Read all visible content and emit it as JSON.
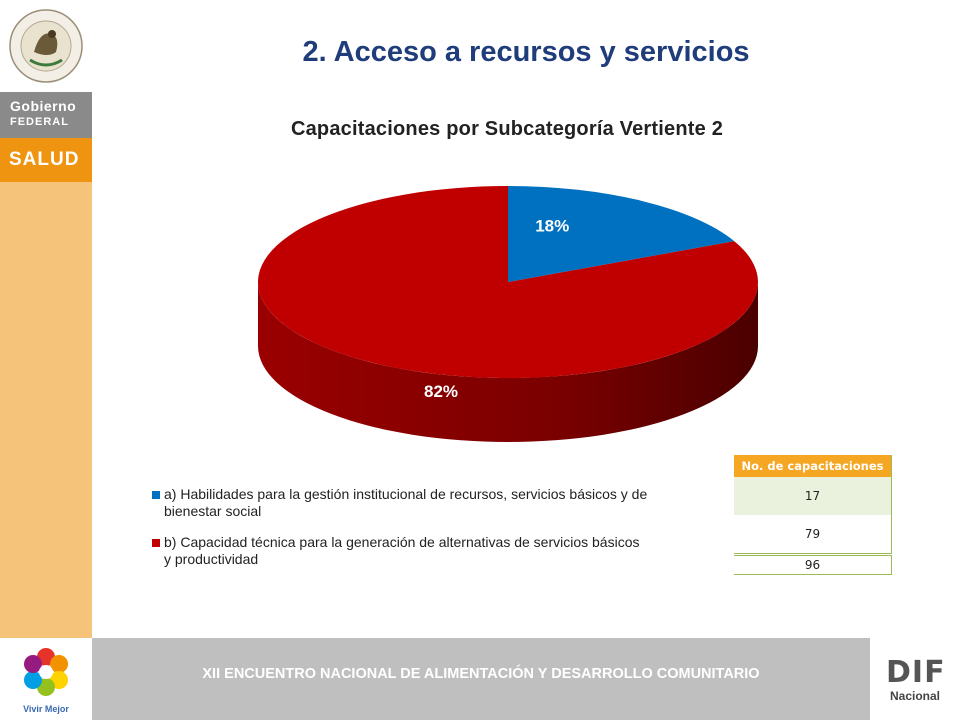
{
  "slide_title": "2. Acceso a recursos y servicios",
  "sidebar": {
    "seal_text": "ESTADOS UNIDOS MEXICANOS",
    "gobierno_line1": "Gobierno",
    "gobierno_line2": "FEDERAL",
    "salud": "SALUD"
  },
  "chart_data": {
    "type": "pie",
    "title": "Capacitaciones por Subcategoría Vertiente 2",
    "slices": [
      {
        "label": "a) Habilidades para la gestión institucional de recursos, servicios básicos y de bienestar social",
        "value": 18,
        "display": "18%",
        "color": "#0070c0"
      },
      {
        "label": "b) Capacidad técnica para la generación de alternativas de servicios básicos y productividad",
        "value": 82,
        "display": "82%",
        "color": "#c00000"
      }
    ],
    "legend_position": "bottom"
  },
  "legend": {
    "item_a_line1": "a) Habilidades para la gestión institucional de recursos, servicios básicos y de",
    "item_a_line2": "bienestar social",
    "item_b_line1": "b) Capacidad técnica para la generación de alternativas de servicios básicos",
    "item_b_line2": "y productividad"
  },
  "table": {
    "header": "No. de capacitaciones",
    "rows": [
      "17",
      "79"
    ],
    "total": "96"
  },
  "footer": {
    "text": "XII ENCUENTRO NACIONAL DE ALIMENTACIÓN Y DESARROLLO COMUNITARIO",
    "left_logo_text": "Vivir Mejor",
    "right_logo_text": "DIF",
    "right_logo_sub": "Nacional"
  },
  "colors": {
    "slice_a": "#0070c0",
    "slice_b": "#c00000",
    "title_blue": "#1f3d7a",
    "sidebar_orange": "#f5c37a",
    "salud_orange": "#ef9410"
  }
}
